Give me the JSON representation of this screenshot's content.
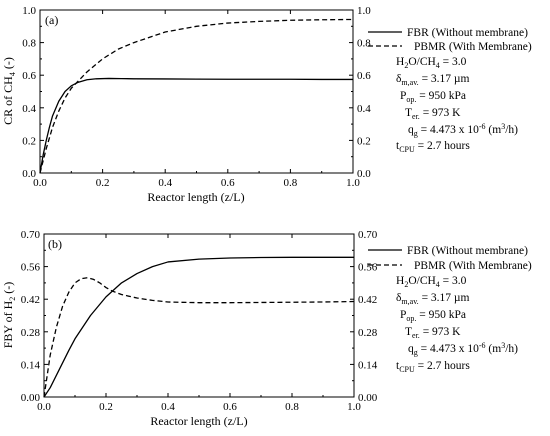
{
  "chart_data": [
    {
      "type": "line",
      "panel_label": "(a)",
      "xlabel": "Reactor length (z/L)",
      "ylabel": "CR of CH",
      "ylabel_sub": "4",
      "ylabel_tail": " (-)",
      "xlim": [
        0,
        1.0
      ],
      "ylim": [
        0,
        1.0
      ],
      "xticks": [
        "0.0",
        "0.2",
        "0.4",
        "0.6",
        "0.8",
        "1.0"
      ],
      "yticks": [
        "0.0",
        "0.2",
        "0.4",
        "0.6",
        "0.8",
        "1.0"
      ],
      "right_yticks": [
        "0.0",
        "0.2",
        "0.4",
        "0.6",
        "0.8",
        "1.0"
      ],
      "legend_position": "top-right",
      "series": [
        {
          "name": "FBR (Without membrane)",
          "style": "solid",
          "x": [
            0,
            0.01,
            0.02,
            0.03,
            0.04,
            0.06,
            0.08,
            0.1,
            0.12,
            0.15,
            0.18,
            0.22,
            0.26,
            0.3,
            0.4,
            0.5,
            0.6,
            0.7,
            0.8,
            0.9,
            1.0
          ],
          "y": [
            0.0,
            0.11,
            0.2,
            0.28,
            0.35,
            0.44,
            0.5,
            0.535,
            0.555,
            0.572,
            0.578,
            0.58,
            0.579,
            0.578,
            0.577,
            0.576,
            0.575,
            0.575,
            0.575,
            0.574,
            0.574
          ]
        },
        {
          "name": "PBMR (With Membrane)",
          "style": "dashed",
          "x": [
            0,
            0.02,
            0.04,
            0.06,
            0.08,
            0.1,
            0.12,
            0.15,
            0.2,
            0.25,
            0.3,
            0.4,
            0.5,
            0.6,
            0.7,
            0.8,
            0.9,
            1.0
          ],
          "y": [
            0.0,
            0.15,
            0.28,
            0.38,
            0.46,
            0.52,
            0.56,
            0.62,
            0.7,
            0.76,
            0.8,
            0.865,
            0.9,
            0.92,
            0.93,
            0.937,
            0.94,
            0.942
          ]
        }
      ]
    },
    {
      "type": "line",
      "panel_label": "(b)",
      "xlabel": "Reactor length (z/L)",
      "ylabel": "FBY of H",
      "ylabel_sub": "2",
      "ylabel_tail": " (-)",
      "xlim": [
        0,
        1.0
      ],
      "ylim": [
        0,
        0.7
      ],
      "xticks": [
        "0.0",
        "0.2",
        "0.4",
        "0.6",
        "0.8",
        "1.0"
      ],
      "yticks": [
        "0.00",
        "0.14",
        "0.28",
        "0.42",
        "0.56",
        "0.70"
      ],
      "right_yticks": [
        "0.00",
        "0.14",
        "0.28",
        "0.42",
        "0.56",
        "0.70"
      ],
      "legend_position": "top-right",
      "series": [
        {
          "name": "FBR (Without membrane)",
          "style": "solid",
          "x": [
            0,
            0.02,
            0.05,
            0.08,
            0.1,
            0.15,
            0.2,
            0.25,
            0.3,
            0.35,
            0.4,
            0.5,
            0.6,
            0.7,
            0.8,
            0.9,
            1.0
          ],
          "y": [
            0.0,
            0.04,
            0.12,
            0.2,
            0.25,
            0.35,
            0.43,
            0.49,
            0.53,
            0.56,
            0.58,
            0.592,
            0.597,
            0.599,
            0.6,
            0.6,
            0.6
          ],
          "note": ""
        },
        {
          "name": "PBMR (With Membrane)",
          "style": "dashed",
          "x": [
            0,
            0.02,
            0.04,
            0.06,
            0.08,
            0.1,
            0.12,
            0.14,
            0.16,
            0.18,
            0.2,
            0.22,
            0.25,
            0.3,
            0.35,
            0.4,
            0.5,
            0.6,
            0.7,
            0.8,
            0.9,
            1.0
          ],
          "y": [
            0.0,
            0.18,
            0.3,
            0.39,
            0.45,
            0.49,
            0.508,
            0.512,
            0.505,
            0.49,
            0.47,
            0.455,
            0.44,
            0.425,
            0.415,
            0.408,
            0.405,
            0.405,
            0.406,
            0.407,
            0.408,
            0.41
          ]
        }
      ]
    }
  ],
  "conditions": {
    "ratio": {
      "a": "H",
      "a_sub": "2",
      "b": "O/CH",
      "b_sub": "4",
      "value": " = 3.0"
    },
    "thickness": {
      "symbol": "δ",
      "sub": "m,av.",
      "value": " = 3.17 µm"
    },
    "pressure": {
      "symbol": "P",
      "sub": "op.",
      "value": " = 950 kPa"
    },
    "temperature": {
      "symbol": "T",
      "sub": "er.",
      "value": " = 973 K"
    },
    "flow": {
      "symbol": "q",
      "sub": "g",
      "value": " = 4.473 x 10",
      "exp": "-6",
      "unit_pre": " (m",
      "unit_exp": "3",
      "unit_post": "/h)"
    },
    "cpu_time": {
      "symbol": "t",
      "sub": "CPU",
      "value": " = 2.7 hours"
    }
  }
}
